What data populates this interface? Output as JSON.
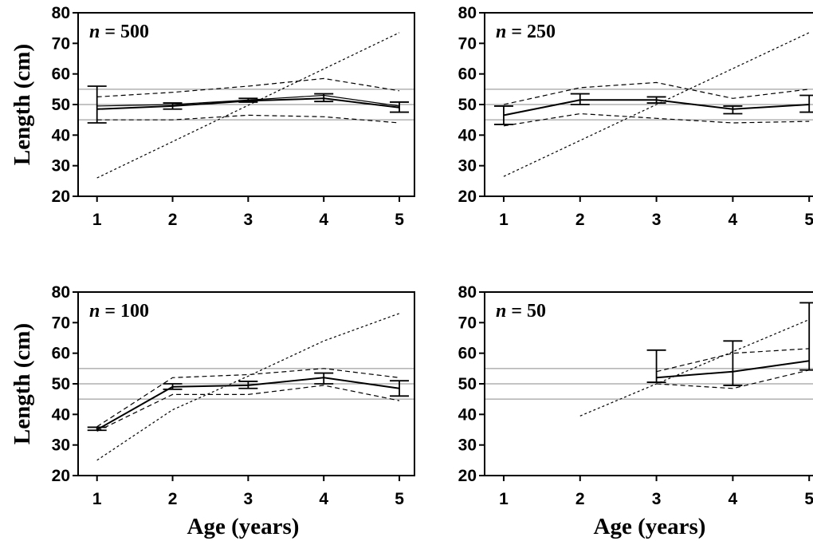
{
  "figure": {
    "ylabel": "Length (cm)",
    "xlabel": "Age (years)"
  },
  "chart_data": [
    {
      "type": "line",
      "panel_label": {
        "prefix": "n",
        "rest": " = 500"
      },
      "x": [
        1,
        2,
        3,
        4,
        5
      ],
      "xticks": [
        "1",
        "2",
        "3",
        "4",
        "5"
      ],
      "yticks": [
        "20",
        "30",
        "40",
        "50",
        "60",
        "70",
        "80"
      ],
      "xlim": [
        0.75,
        5.2
      ],
      "ylim": [
        20,
        80
      ],
      "reference_lines": [
        45,
        50,
        55
      ],
      "series": [
        {
          "style": "mean-solid",
          "values": [
            48.5,
            49.5,
            51.2,
            52.0,
            49.0
          ]
        },
        {
          "style": "true-solid",
          "values": [
            49.5,
            50.0,
            51.5,
            53.0,
            49.5
          ]
        },
        {
          "style": "upper-dashed",
          "values": [
            52.5,
            54.0,
            56.0,
            58.5,
            54.5
          ]
        },
        {
          "style": "lower-dashed",
          "values": [
            45.0,
            45.0,
            46.5,
            46.0,
            44.0
          ]
        },
        {
          "style": "diagonal-dotted",
          "x": [
            1,
            5
          ],
          "values": [
            26.0,
            73.5
          ]
        }
      ],
      "error_bars": [
        {
          "x": 1,
          "low": 44.0,
          "high": 56.0
        },
        {
          "x": 2,
          "low": 48.5,
          "high": 50.5
        },
        {
          "x": 3,
          "low": 50.8,
          "high": 52.0
        },
        {
          "x": 4,
          "low": 51.0,
          "high": 53.5
        },
        {
          "x": 5,
          "low": 47.5,
          "high": 50.8
        }
      ]
    },
    {
      "type": "line",
      "panel_label": {
        "prefix": "n",
        "rest": " = 250"
      },
      "x": [
        1,
        2,
        3,
        4,
        5
      ],
      "xticks": [
        "1",
        "2",
        "3",
        "4",
        "5"
      ],
      "yticks": [
        "20",
        "30",
        "40",
        "50",
        "60",
        "70",
        "80"
      ],
      "xlim": [
        0.75,
        5.05
      ],
      "ylim": [
        20,
        80
      ],
      "reference_lines": [
        45,
        50,
        55
      ],
      "series": [
        {
          "style": "mean-solid",
          "values": [
            46.5,
            51.5,
            51.5,
            48.5,
            50.0
          ]
        },
        {
          "style": "upper-dashed",
          "values": [
            50.0,
            55.5,
            57.2,
            52.0,
            55.0
          ]
        },
        {
          "style": "lower-dashed",
          "values": [
            43.0,
            47.0,
            45.5,
            44.0,
            44.5
          ]
        },
        {
          "style": "diagonal-dotted",
          "x": [
            1,
            5
          ],
          "values": [
            26.5,
            73.5
          ]
        }
      ],
      "error_bars": [
        {
          "x": 1,
          "low": 43.5,
          "high": 49.5
        },
        {
          "x": 2,
          "low": 50.0,
          "high": 53.5
        },
        {
          "x": 3,
          "low": 50.5,
          "high": 52.5
        },
        {
          "x": 4,
          "low": 47.0,
          "high": 49.5
        },
        {
          "x": 5,
          "low": 47.5,
          "high": 53.0
        }
      ]
    },
    {
      "type": "line",
      "panel_label": {
        "prefix": "n",
        "rest": " = 100"
      },
      "x": [
        1,
        2,
        3,
        4,
        5
      ],
      "xticks": [
        "1",
        "2",
        "3",
        "4",
        "5"
      ],
      "yticks": [
        "20",
        "30",
        "40",
        "50",
        "60",
        "70",
        "80"
      ],
      "xlim": [
        0.75,
        5.2
      ],
      "ylim": [
        20,
        80
      ],
      "reference_lines": [
        45,
        50,
        55
      ],
      "series": [
        {
          "style": "mean-solid",
          "values": [
            35.0,
            49.0,
            49.5,
            52.0,
            48.5
          ]
        },
        {
          "style": "upper-dashed",
          "values": [
            36.0,
            52.0,
            53.0,
            55.0,
            52.0
          ]
        },
        {
          "style": "lower-dashed",
          "values": [
            34.5,
            46.5,
            46.5,
            49.5,
            44.5
          ]
        },
        {
          "style": "diagonal-dotted",
          "x": [
            1,
            2,
            3,
            4,
            5
          ],
          "values": [
            25.0,
            41.5,
            52.5,
            64.0,
            73.0
          ]
        }
      ],
      "error_bars": [
        {
          "x": 1,
          "low": 34.8,
          "high": 35.8
        },
        {
          "x": 2,
          "low": 48.2,
          "high": 50.0
        },
        {
          "x": 3,
          "low": 48.5,
          "high": 50.8
        },
        {
          "x": 4,
          "low": 50.0,
          "high": 53.5
        },
        {
          "x": 5,
          "low": 46.0,
          "high": 51.0
        }
      ]
    },
    {
      "type": "line",
      "panel_label": {
        "prefix": "n",
        "rest": " = 50"
      },
      "x": [
        3,
        4,
        5
      ],
      "xticks": [
        "1",
        "2",
        "3",
        "4",
        "5"
      ],
      "yticks": [
        "20",
        "30",
        "40",
        "50",
        "60",
        "70",
        "80"
      ],
      "xlim": [
        0.75,
        5.05
      ],
      "ylim": [
        20,
        80
      ],
      "reference_lines": [
        45,
        50,
        55
      ],
      "series": [
        {
          "style": "mean-solid",
          "values": [
            52.0,
            54.0,
            57.5
          ]
        },
        {
          "style": "upper-dashed",
          "values": [
            54.0,
            60.0,
            61.5
          ]
        },
        {
          "style": "lower-dashed",
          "values": [
            50.0,
            48.5,
            54.5
          ]
        },
        {
          "style": "diagonal-dotted",
          "x": [
            2,
            5
          ],
          "values": [
            39.5,
            71.0
          ]
        }
      ],
      "error_bars": [
        {
          "x": 3,
          "low": 50.5,
          "high": 61.0
        },
        {
          "x": 4,
          "low": 49.5,
          "high": 64.0
        },
        {
          "x": 5,
          "low": 54.5,
          "high": 76.5
        }
      ]
    }
  ]
}
